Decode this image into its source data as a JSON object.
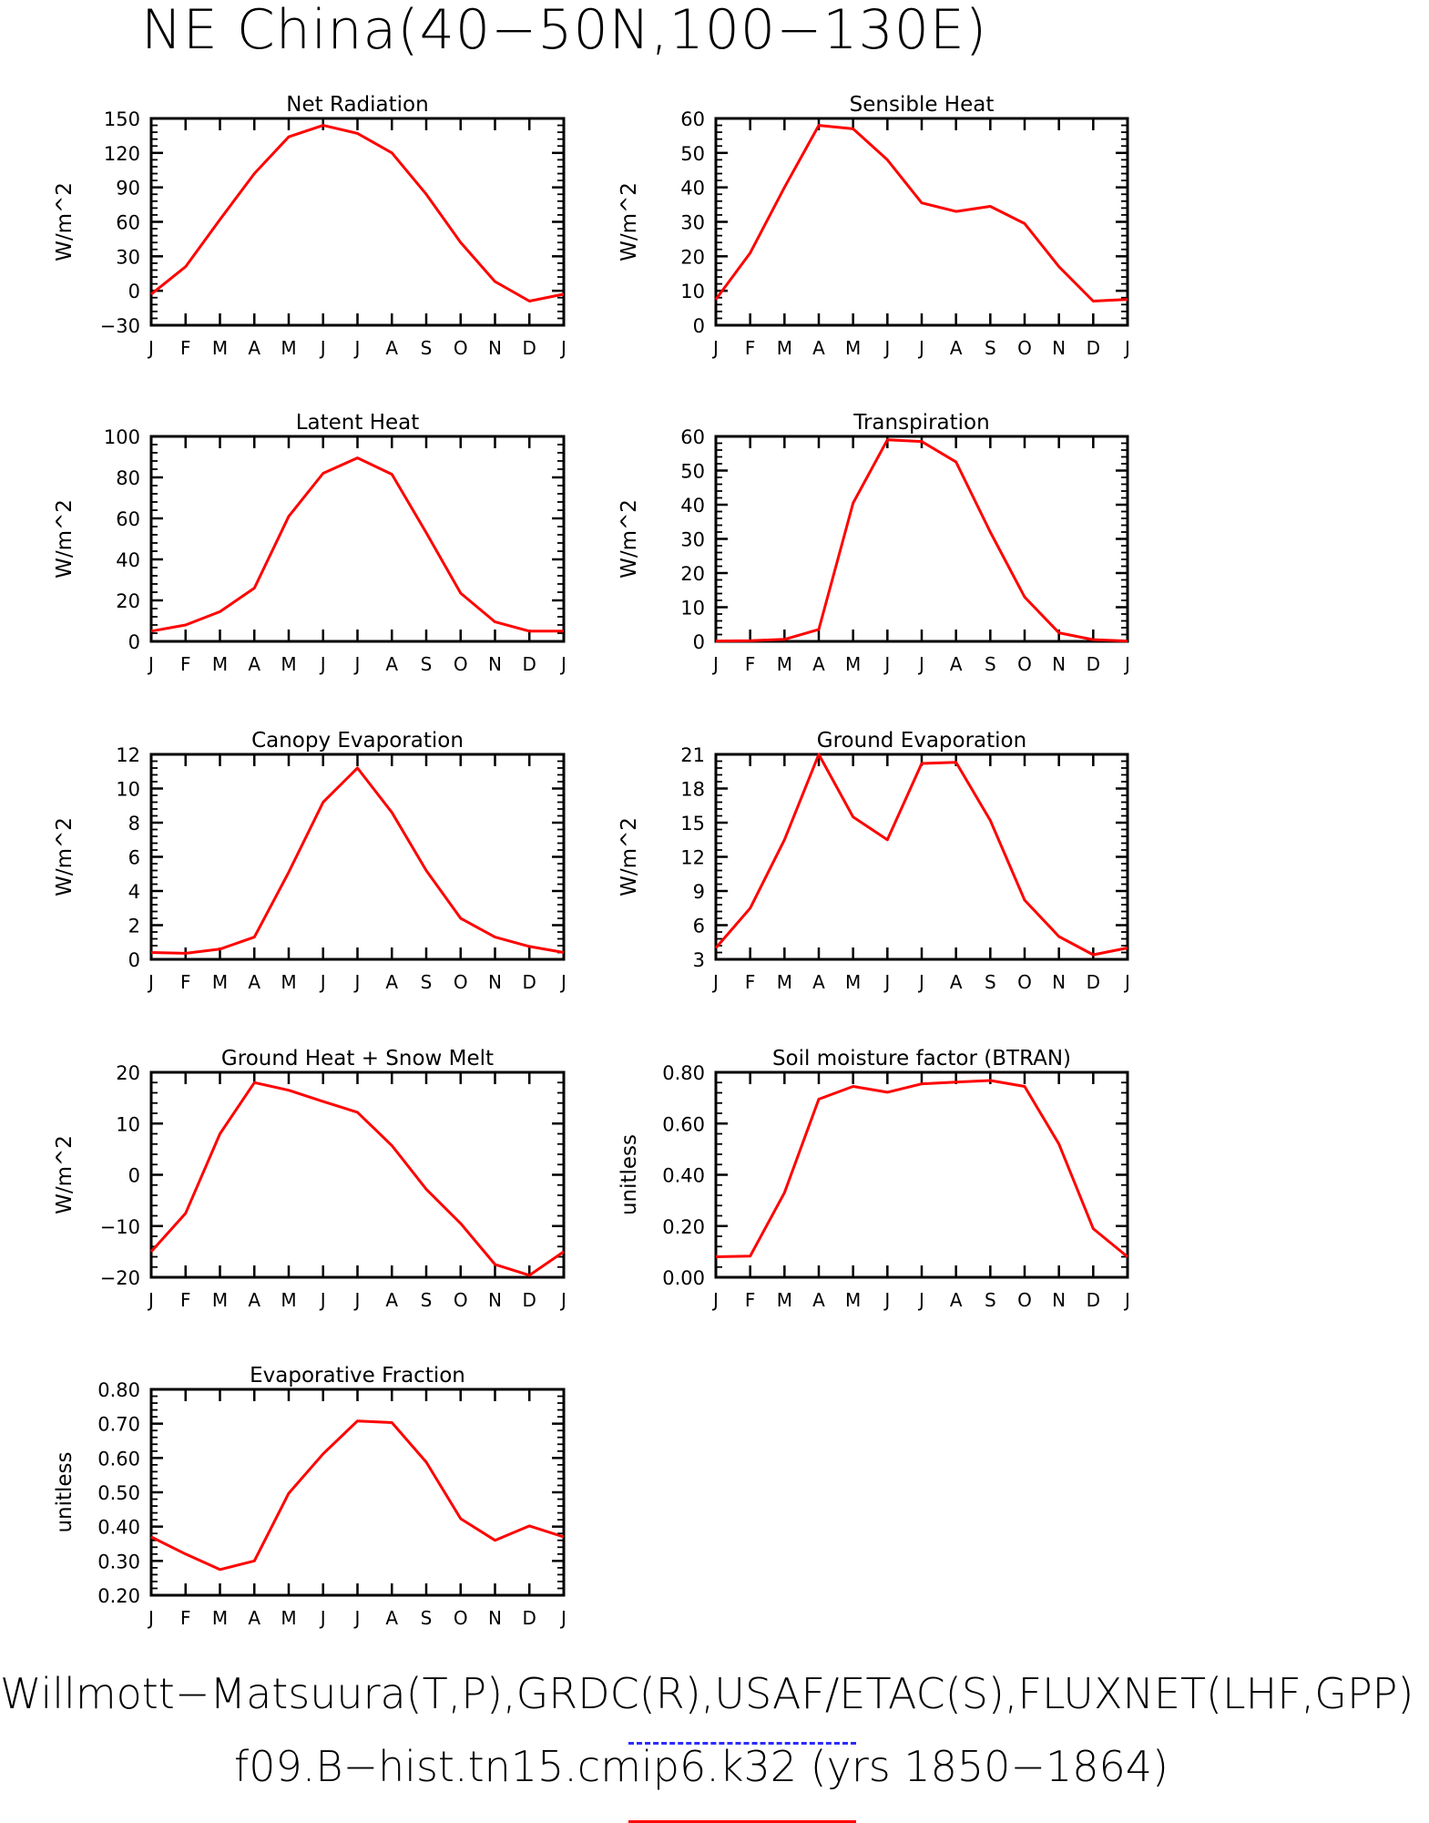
{
  "page": {
    "title": "NE China(40−50N,100−130E)",
    "footer_line1": "Willmott−Matsuura(T,P),GRDC(R),USAF/ETAC(S),FLUXNET(LHF,GPP)",
    "footer_line2": "f09.B−hist.tn15.cmip6.k32 (yrs 1850−1864)",
    "line_color": "#ff0000",
    "obs_legend_color": "#2b2bff"
  },
  "chart_data": [
    {
      "type": "line",
      "title": "Net Radiation",
      "ylabel": "W/m^2",
      "categories": [
        "J",
        "F",
        "M",
        "A",
        "M",
        "J",
        "J",
        "A",
        "S",
        "O",
        "N",
        "D",
        "J"
      ],
      "ylim": [
        -30,
        150
      ],
      "yticks": [
        -30,
        0,
        30,
        60,
        90,
        120,
        150
      ],
      "ytick_labels": [
        "−30",
        "0",
        "30",
        "60",
        "90",
        "120",
        "150"
      ],
      "values": [
        -3,
        21,
        62,
        102,
        134,
        144,
        137,
        120,
        84,
        42,
        8,
        -9,
        -3
      ]
    },
    {
      "type": "line",
      "title": "Sensible Heat",
      "ylabel": "W/m^2",
      "categories": [
        "J",
        "F",
        "M",
        "A",
        "M",
        "J",
        "J",
        "A",
        "S",
        "O",
        "N",
        "D",
        "J"
      ],
      "ylim": [
        0,
        60
      ],
      "yticks": [
        0,
        10,
        20,
        30,
        40,
        50,
        60
      ],
      "ytick_labels": [
        "0",
        "10",
        "20",
        "30",
        "40",
        "50",
        "60"
      ],
      "values": [
        7.5,
        21,
        40,
        58,
        57,
        48,
        35.5,
        33,
        34.5,
        29.5,
        17,
        7,
        7.5
      ]
    },
    {
      "type": "line",
      "title": "Latent Heat",
      "ylabel": "W/m^2",
      "categories": [
        "J",
        "F",
        "M",
        "A",
        "M",
        "J",
        "J",
        "A",
        "S",
        "O",
        "N",
        "D",
        "J"
      ],
      "ylim": [
        0,
        100
      ],
      "yticks": [
        0,
        20,
        40,
        60,
        80,
        100
      ],
      "ytick_labels": [
        "0",
        "20",
        "40",
        "60",
        "80",
        "100"
      ],
      "values": [
        5,
        8,
        14.5,
        26,
        61,
        82,
        89.5,
        81.5,
        53,
        23.5,
        9.5,
        5,
        5
      ]
    },
    {
      "type": "line",
      "title": "Transpiration",
      "ylabel": "W/m^2",
      "categories": [
        "J",
        "F",
        "M",
        "A",
        "M",
        "J",
        "J",
        "A",
        "S",
        "O",
        "N",
        "D",
        "J"
      ],
      "ylim": [
        0,
        60
      ],
      "yticks": [
        0,
        10,
        20,
        30,
        40,
        50,
        60
      ],
      "ytick_labels": [
        "0",
        "10",
        "20",
        "30",
        "40",
        "50",
        "60"
      ],
      "values": [
        0.1,
        0.2,
        0.6,
        3.5,
        40.5,
        59,
        58.5,
        52.5,
        32,
        13,
        2.5,
        0.5,
        0.1
      ]
    },
    {
      "type": "line",
      "title": "Canopy Evaporation",
      "ylabel": "W/m^2",
      "categories": [
        "J",
        "F",
        "M",
        "A",
        "M",
        "J",
        "J",
        "A",
        "S",
        "O",
        "N",
        "D",
        "J"
      ],
      "ylim": [
        0,
        12
      ],
      "yticks": [
        0,
        2,
        4,
        6,
        8,
        10,
        12
      ],
      "ytick_labels": [
        "0",
        "2",
        "4",
        "6",
        "8",
        "10",
        "12"
      ],
      "values": [
        0.4,
        0.35,
        0.6,
        1.3,
        5.1,
        9.2,
        11.2,
        8.6,
        5.2,
        2.4,
        1.3,
        0.75,
        0.4
      ]
    },
    {
      "type": "line",
      "title": "Ground Evaporation",
      "ylabel": "W/m^2",
      "categories": [
        "J",
        "F",
        "M",
        "A",
        "M",
        "J",
        "J",
        "A",
        "S",
        "O",
        "N",
        "D",
        "J"
      ],
      "ylim": [
        3,
        21
      ],
      "yticks": [
        3,
        6,
        9,
        12,
        15,
        18,
        21
      ],
      "ytick_labels": [
        "3",
        "6",
        "9",
        "12",
        "15",
        "18",
        "21"
      ],
      "values": [
        4,
        7.5,
        13.5,
        21,
        15.5,
        13.5,
        20.2,
        20.3,
        15.2,
        8.2,
        5,
        3.4,
        4
      ]
    },
    {
      "type": "line",
      "title": "Ground Heat + Snow Melt",
      "ylabel": "W/m^2",
      "categories": [
        "J",
        "F",
        "M",
        "A",
        "M",
        "J",
        "J",
        "A",
        "S",
        "O",
        "N",
        "D",
        "J"
      ],
      "ylim": [
        -20,
        20
      ],
      "yticks": [
        -20,
        -10,
        0,
        10,
        20
      ],
      "ytick_labels": [
        "−20",
        "−10",
        "0",
        "10",
        "20"
      ],
      "values": [
        -15,
        -7.5,
        8,
        18,
        16.5,
        14.3,
        12.2,
        5.7,
        -2.8,
        -9.5,
        -17.5,
        -19.6,
        -15
      ]
    },
    {
      "type": "line",
      "title": "Soil moisture factor (BTRAN)",
      "ylabel": "unitless",
      "categories": [
        "J",
        "F",
        "M",
        "A",
        "M",
        "J",
        "J",
        "A",
        "S",
        "O",
        "N",
        "D",
        "J"
      ],
      "ylim": [
        0,
        0.8
      ],
      "yticks": [
        0,
        0.2,
        0.4,
        0.6,
        0.8
      ],
      "ytick_labels": [
        "0.00",
        "0.20",
        "0.40",
        "0.60",
        "0.80"
      ],
      "values": [
        0.08,
        0.083,
        0.33,
        0.695,
        0.745,
        0.722,
        0.755,
        0.762,
        0.768,
        0.745,
        0.52,
        0.19,
        0.08
      ]
    },
    {
      "type": "line",
      "title": "Evaporative Fraction",
      "ylabel": "unitless",
      "categories": [
        "J",
        "F",
        "M",
        "A",
        "M",
        "J",
        "J",
        "A",
        "S",
        "O",
        "N",
        "D",
        "J"
      ],
      "ylim": [
        0.2,
        0.8
      ],
      "yticks": [
        0.2,
        0.3,
        0.4,
        0.5,
        0.6,
        0.7,
        0.8
      ],
      "ytick_labels": [
        "0.20",
        "0.30",
        "0.40",
        "0.50",
        "0.60",
        "0.70",
        "0.80"
      ],
      "values": [
        0.37,
        0.32,
        0.275,
        0.3,
        0.497,
        0.612,
        0.708,
        0.703,
        0.588,
        0.423,
        0.36,
        0.402,
        0.37
      ]
    }
  ]
}
